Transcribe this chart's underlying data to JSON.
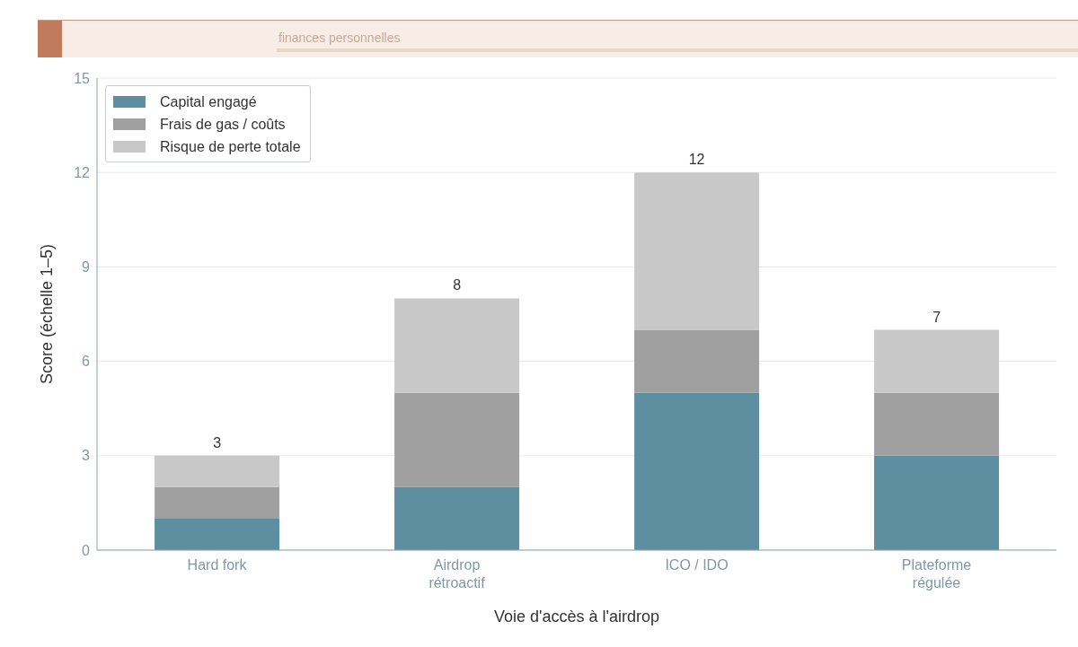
{
  "chart_data": {
    "type": "bar",
    "subtitle": "finances personnelles",
    "xlabel": "Voie d'accès à l'airdrop",
    "ylabel": "Score (échelle 1–5)",
    "categories": [
      "Hard fork",
      "Airdrop rétroactif",
      "ICO / IDO",
      "Plateforme régulée"
    ],
    "series": [
      {
        "name": "Capital engagé",
        "color": "#5e8fa0",
        "values": [
          1,
          2,
          5,
          3
        ]
      },
      {
        "name": "Frais de gas / coûts",
        "color": "#a0a0a0",
        "values": [
          1,
          3,
          2,
          2
        ]
      },
      {
        "name": "Risque de perte totale",
        "color": "#c8c8c8",
        "values": [
          1,
          3,
          5,
          2
        ]
      }
    ],
    "stacked": true,
    "ylim": [
      0,
      15
    ],
    "yticks": [
      0,
      3,
      6,
      9,
      12,
      15
    ],
    "grid": "y",
    "legend": "top left",
    "totals": [
      "3",
      "8",
      "12",
      "7"
    ]
  }
}
